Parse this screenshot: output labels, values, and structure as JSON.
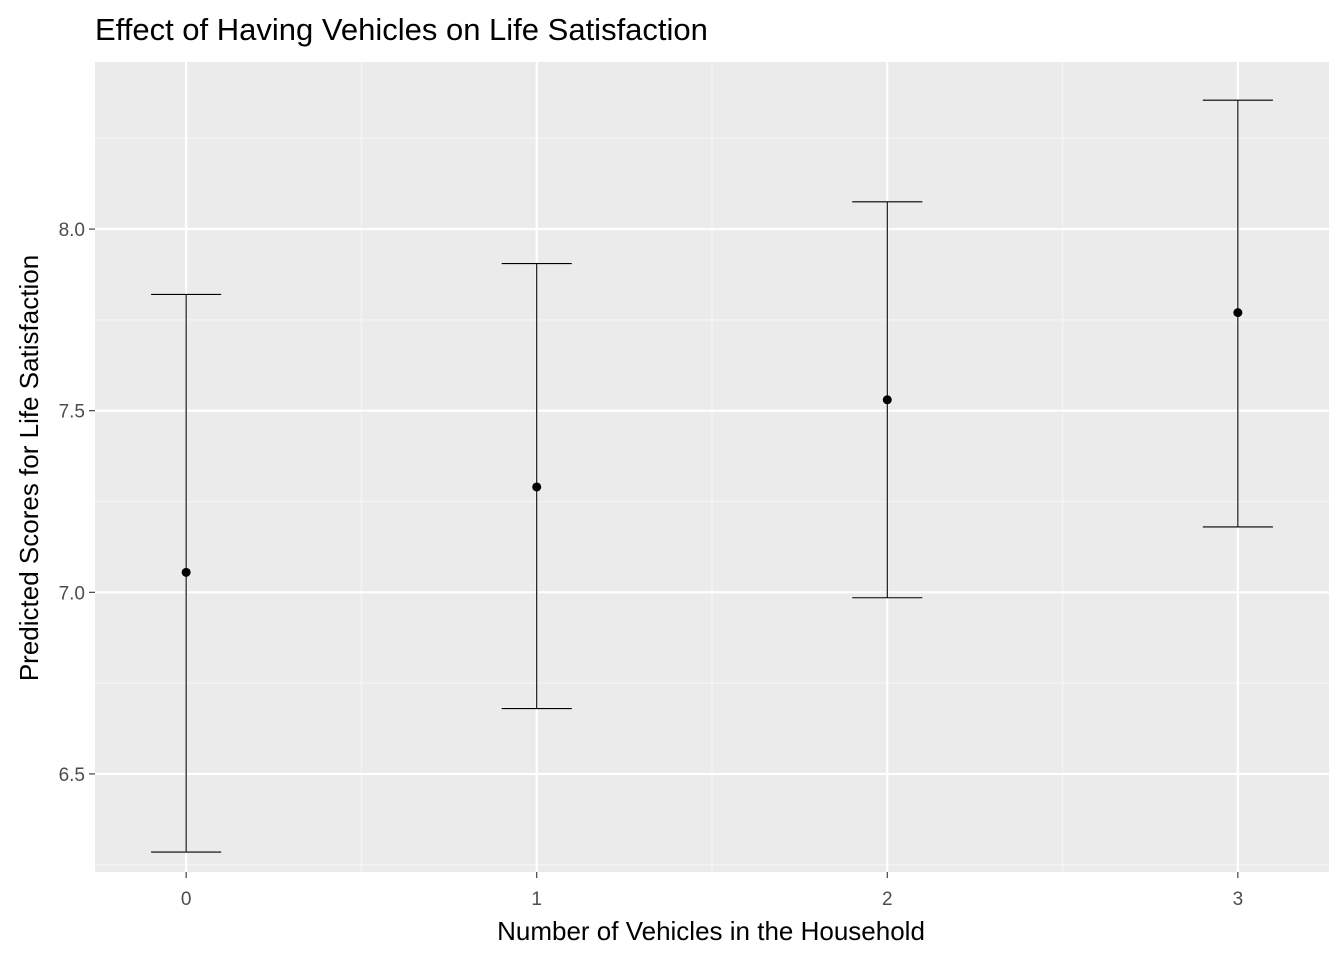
{
  "chart_data": {
    "type": "scatter",
    "subtype": "point-with-errorbars",
    "title": "Effect of Having Vehicles on Life Satisfaction",
    "xlabel": "Number of Vehicles in the Household",
    "ylabel": "Predicted Scores for Life Satisfaction",
    "categories": [
      "0",
      "1",
      "2",
      "3"
    ],
    "x": [
      0,
      1,
      2,
      3
    ],
    "values": [
      7.055,
      7.29,
      7.53,
      7.77
    ],
    "lower": [
      6.285,
      6.68,
      6.985,
      7.18
    ],
    "upper": [
      7.82,
      7.905,
      8.075,
      8.355
    ],
    "xlim": [
      -0.26,
      3.26
    ],
    "ylim": [
      6.23,
      8.46
    ],
    "y_ticks": [
      6.5,
      7.0,
      7.5,
      8.0
    ],
    "y_tick_labels": [
      "6.5",
      "7.0",
      "7.5",
      "8.0"
    ],
    "x_ticks": [
      0,
      1,
      2,
      3
    ],
    "x_tick_labels": [
      "0",
      "1",
      "2",
      "3"
    ],
    "grid": true,
    "legend": "none",
    "colors": {
      "panel_background": "#ebebeb",
      "grid_major": "#ffffff",
      "grid_minor": "#f5f5f5",
      "mark": "#000000",
      "tick_text": "#4d4d4d"
    }
  }
}
